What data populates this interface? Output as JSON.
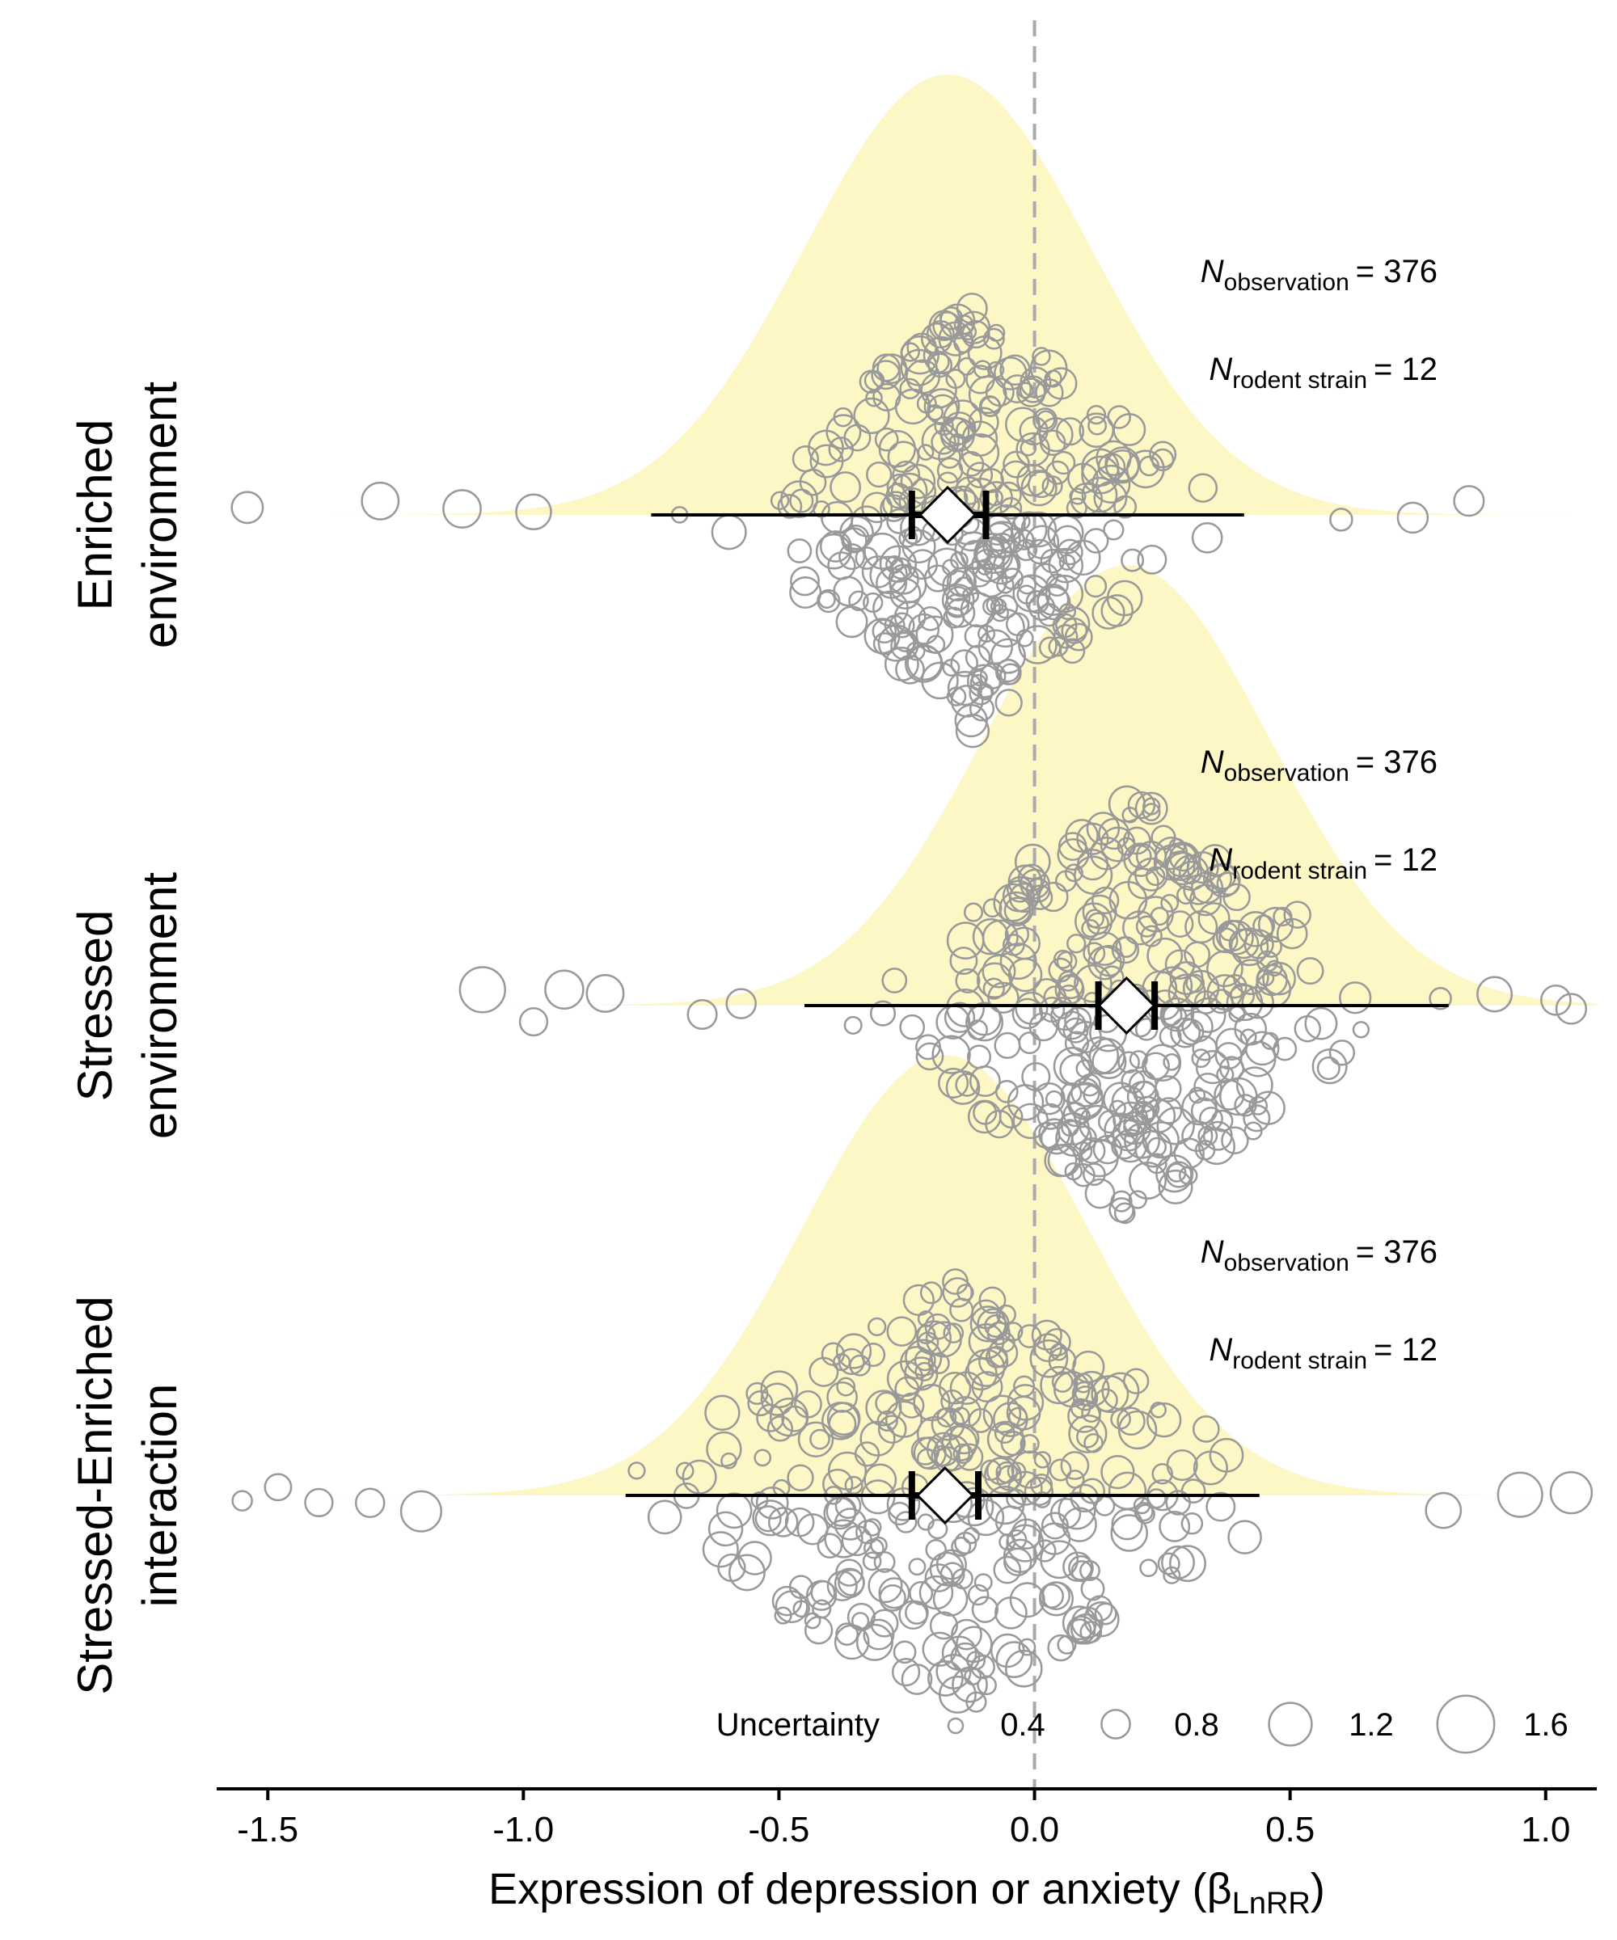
{
  "chart_data": {
    "type": "scatter",
    "subtype": "orchard plot (bubble beeswarm with density and effect estimates)",
    "x_axis": {
      "title": "Expression of depression or anxiety (βLnRR)",
      "title_main": "Expression of depression or anxiety (",
      "title_symbol": "β",
      "title_sub": "LnRR",
      "title_close": ")",
      "range": [
        -1.6,
        1.1
      ],
      "ticks": [
        -1.5,
        -1.0,
        -0.5,
        0.0,
        0.5,
        1.0
      ],
      "tick_labels": [
        "-1.5",
        "-1.0",
        "-0.5",
        "0.0",
        "0.5",
        "1.0"
      ]
    },
    "reference_line": {
      "x": 0.0,
      "style": "dashed",
      "color": "#aaaaaa"
    },
    "colors": {
      "density_fill": "#fdf7c6",
      "points_stroke": "#999999",
      "estimate_fill": "#ffffff",
      "interval": "#000000"
    },
    "groups": [
      {
        "label_line1": "Enriched",
        "label_line2": "environment",
        "estimate": -0.17,
        "ci": [
          -0.24,
          -0.095
        ],
        "pi": [
          -0.75,
          0.41
        ],
        "density": {
          "mean": -0.17,
          "sd": 0.28
        },
        "n_observation_label": "N",
        "n_observation_sub": "observation",
        "n_observation": "= 376",
        "n_strain_label": "N",
        "n_strain_sub": "rodent strain",
        "n_strain": "= 12",
        "points_spread": {
          "center": -0.12,
          "sd": 0.22
        },
        "outliers": [
          -1.54,
          -1.28,
          -1.12,
          -0.98,
          0.6,
          0.74,
          0.85
        ]
      },
      {
        "label_line1": "Stressed",
        "label_line2": "environment",
        "estimate": 0.18,
        "ci": [
          0.125,
          0.235
        ],
        "pi": [
          -0.45,
          0.81
        ],
        "density": {
          "mean": 0.18,
          "sd": 0.28
        },
        "n_observation_label": "N",
        "n_observation_sub": "observation",
        "n_observation": "= 376",
        "n_strain_label": "N",
        "n_strain_sub": "rodent strain",
        "n_strain": "= 12",
        "points_spread": {
          "center": 0.18,
          "sd": 0.25
        },
        "outliers": [
          -1.08,
          -0.98,
          -0.92,
          -0.84,
          -0.65,
          0.9,
          1.02,
          1.05
        ]
      },
      {
        "label_line1": "Stressed-Enriched",
        "label_line2": "interaction",
        "estimate": -0.175,
        "ci": [
          -0.24,
          -0.11
        ],
        "pi": [
          -0.8,
          0.44
        ],
        "density": {
          "mean": -0.175,
          "sd": 0.28
        },
        "n_observation_label": "N",
        "n_observation_sub": "observation",
        "n_observation": "= 376",
        "n_strain_label": "N",
        "n_strain_sub": "rodent strain",
        "n_strain": "= 12",
        "points_spread": {
          "center": -0.15,
          "sd": 0.32
        },
        "outliers": [
          -1.55,
          -1.48,
          -1.4,
          -1.3,
          -1.2,
          0.8,
          0.95,
          1.05
        ]
      }
    ],
    "legend": {
      "title": "Uncertainty",
      "position": "bottom-right",
      "items": [
        {
          "label": "0.4",
          "value": 0.4
        },
        {
          "label": "0.8",
          "value": 0.8
        },
        {
          "label": "1.2",
          "value": 1.2
        },
        {
          "label": "1.6",
          "value": 1.6
        }
      ]
    }
  }
}
